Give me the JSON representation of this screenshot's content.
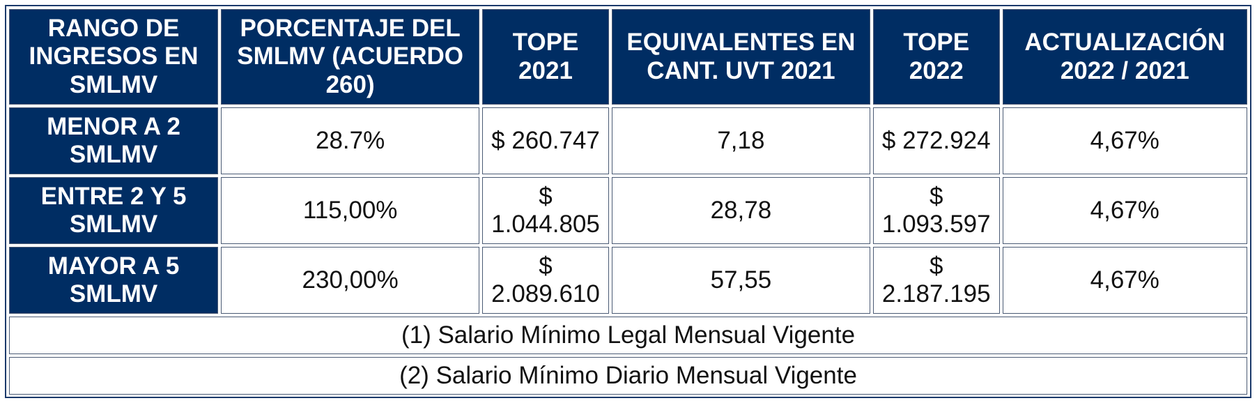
{
  "headers": [
    "RANGO DE INGRESOS EN SMLMV",
    "PORCENTAJE DEL SMLMV (ACUERDO 260)",
    "TOPE 2021",
    "EQUIVALENTES EN CANT. UVT 2021",
    "TOPE 2022",
    "ACTUALIZACIÓN 2022 / 2021"
  ],
  "rows": [
    {
      "range": "MENOR A 2 SMLMV",
      "percentage": "28.7%",
      "tope_2021": "$ 260.747",
      "uvt_2021": "7,18",
      "tope_2022": "$ 272.924",
      "update": "4,67%"
    },
    {
      "range": "ENTRE 2 Y 5 SMLMV",
      "percentage": "115,00%",
      "tope_2021": "$ 1.044.805",
      "uvt_2021": "28,78",
      "tope_2022": "$ 1.093.597",
      "update": "4,67%"
    },
    {
      "range": "MAYOR A 5 SMLMV",
      "percentage": "230,00%",
      "tope_2021": "$ 2.089.610",
      "uvt_2021": "57,55",
      "tope_2022": "$ 2.187.195",
      "update": "4,67%"
    }
  ],
  "notes": [
    "(1) Salario Mínimo Legal Mensual Vigente",
    "(2) Salario Mínimo Diario Mensual Vigente"
  ],
  "colors": {
    "header_bg": "#002d63",
    "header_text": "#ffffff",
    "border": "#1c3a6b"
  }
}
